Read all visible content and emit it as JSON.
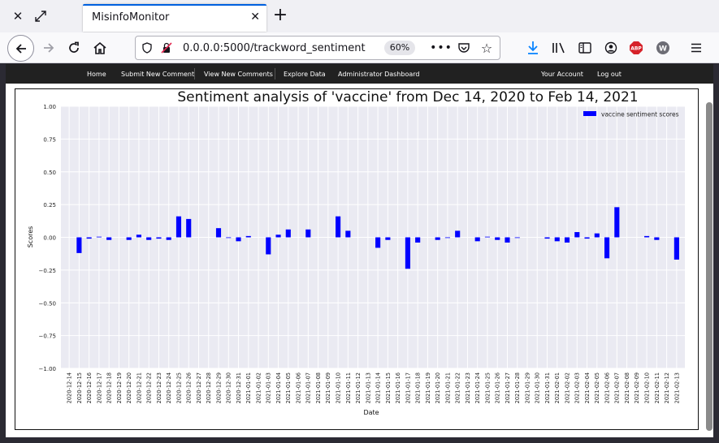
{
  "browser": {
    "tab_title": "MisinfoMonitor",
    "url": "0.0.0.0:5000/trackword_sentiment",
    "zoom": "60%"
  },
  "site_nav": {
    "left_items": [
      "Home",
      "Submit New Comment",
      "View New Comments",
      "Explore Data",
      "Administrator Dashboard"
    ],
    "right_items": [
      "Your Account",
      "Log out"
    ]
  },
  "chart_data": {
    "type": "bar",
    "title": "Sentiment analysis of 'vaccine' from Dec 14, 2020 to Feb 14, 2021",
    "xlabel": "Date",
    "ylabel": "Scores",
    "ylim": [
      -1.0,
      1.0
    ],
    "yticks": [
      "1.00",
      "0.75",
      "0.50",
      "0.25",
      "0.00",
      "−0.25",
      "−0.50",
      "−0.75",
      "−1.00"
    ],
    "grid": true,
    "legend_position": "top-right",
    "bar_color": "#0000ff",
    "categories": [
      "2020-12-14",
      "2020-12-15",
      "2020-12-16",
      "2020-12-17",
      "2020-12-18",
      "2020-12-19",
      "2020-12-20",
      "2020-12-21",
      "2020-12-22",
      "2020-12-23",
      "2020-12-24",
      "2020-12-25",
      "2020-12-26",
      "2020-12-27",
      "2020-12-28",
      "2020-12-29",
      "2020-12-30",
      "2020-12-31",
      "2021-01-01",
      "2021-01-02",
      "2021-01-03",
      "2021-01-04",
      "2021-01-05",
      "2021-01-06",
      "2021-01-07",
      "2021-01-08",
      "2021-01-09",
      "2021-01-10",
      "2021-01-11",
      "2021-01-12",
      "2021-01-13",
      "2021-01-14",
      "2021-01-15",
      "2021-01-16",
      "2021-01-17",
      "2021-01-18",
      "2021-01-19",
      "2021-01-20",
      "2021-01-21",
      "2021-01-22",
      "2021-01-23",
      "2021-01-24",
      "2021-01-25",
      "2021-01-26",
      "2021-01-27",
      "2021-01-28",
      "2021-01-29",
      "2021-01-30",
      "2021-01-31",
      "2021-02-01",
      "2021-02-02",
      "2021-02-03",
      "2021-02-04",
      "2021-02-05",
      "2021-02-06",
      "2021-02-07",
      "2021-02-08",
      "2021-02-09",
      "2021-02-10",
      "2021-02-11",
      "2021-02-12",
      "2021-02-13"
    ],
    "series": [
      {
        "name": "vaccine sentiment scores",
        "values": [
          0,
          -0.12,
          -0.01,
          0.005,
          -0.02,
          0,
          -0.02,
          0.02,
          -0.02,
          -0.01,
          -0.02,
          0.16,
          0.14,
          0,
          0,
          0.07,
          -0.005,
          -0.03,
          0.01,
          0,
          -0.13,
          0.02,
          0.06,
          0,
          0.06,
          0,
          0,
          0.16,
          0.05,
          0,
          0,
          -0.08,
          -0.02,
          0,
          -0.24,
          -0.04,
          0,
          -0.02,
          -0.005,
          0.05,
          0,
          -0.03,
          0.005,
          -0.02,
          -0.04,
          -0.005,
          0,
          0,
          -0.01,
          -0.03,
          -0.04,
          0.04,
          -0.01,
          0.03,
          -0.16,
          0.23,
          0,
          0,
          0.01,
          -0.02,
          0,
          -0.17
        ]
      }
    ]
  }
}
